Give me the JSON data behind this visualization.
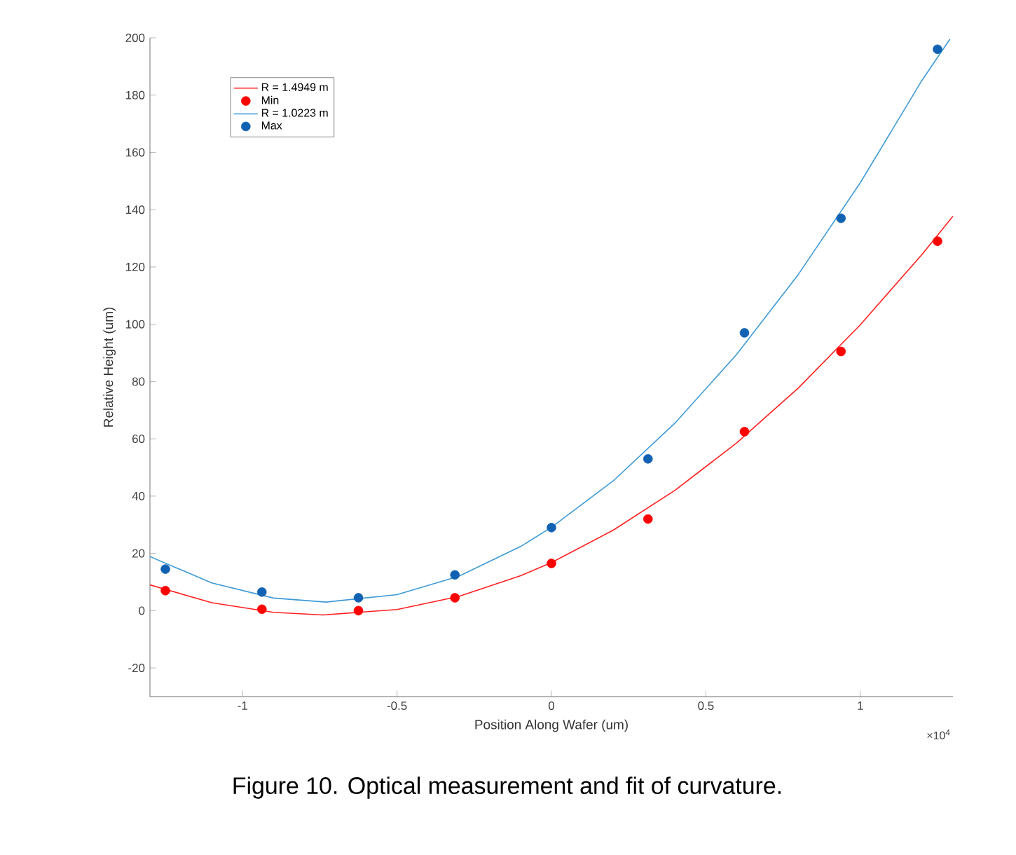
{
  "chart_data": {
    "type": "scatter",
    "xlabel": "Position Along Wafer (um)",
    "ylabel": "Relative Height (um)",
    "x": [
      -1.25,
      -0.9375,
      -0.625,
      -0.3125,
      0,
      0.3125,
      0.625,
      0.9375,
      1.25
    ],
    "series": [
      {
        "name": "R = 1.4949 m",
        "type": "line",
        "color": "#ff2020",
        "marker": "none",
        "line_style": "solid",
        "x": [
          -1.3,
          -1.1,
          -0.9,
          -0.74,
          -0.5,
          -0.3,
          -0.1,
          0,
          0.2,
          0.4,
          0.6,
          0.8,
          1.0,
          1.2,
          1.3
        ],
        "values": [
          9.0,
          2.8,
          -0.6,
          -1.5,
          0.4,
          5.0,
          12.2,
          16.8,
          28.1,
          42.0,
          58.6,
          77.8,
          99.8,
          124.4,
          137.7
        ]
      },
      {
        "name": "Min",
        "type": "scatter",
        "color": "#ff0000",
        "marker": "circle",
        "values": [
          7,
          0.5,
          0,
          4.5,
          16.5,
          32,
          62.5,
          90.5,
          129
        ]
      },
      {
        "name": "R = 1.0223 m",
        "type": "line",
        "color": "#3d9ad6",
        "marker": "none",
        "line_style": "solid",
        "x": [
          -1.3,
          -1.1,
          -0.9,
          -0.73,
          -0.5,
          -0.3,
          -0.1,
          0,
          0.2,
          0.4,
          0.6,
          0.8,
          1.0,
          1.2,
          1.29
        ],
        "values": [
          18.9,
          9.7,
          4.4,
          3.0,
          5.6,
          12.0,
          22.4,
          29.1,
          45.3,
          65.5,
          89.5,
          117.5,
          149.4,
          185.2,
          199.5
        ]
      },
      {
        "name": "Max",
        "type": "scatter",
        "color": "#1262b3",
        "marker": "circle",
        "values": [
          14.5,
          6.5,
          4.5,
          12.5,
          29,
          53,
          97,
          137,
          196
        ]
      }
    ],
    "xlim": [
      -1.3,
      1.3
    ],
    "xticks": [
      -1,
      -0.5,
      0,
      0.5,
      1
    ],
    "ylim": [
      -30,
      200
    ],
    "yticks": [
      -20,
      0,
      20,
      40,
      60,
      80,
      100,
      120,
      140,
      160,
      180,
      200
    ],
    "grid": false,
    "legend": "top left",
    "annotations": [
      "×10$^{4}$",
      "Figure 10. Optical measurement and fit of curvature."
    ]
  }
}
